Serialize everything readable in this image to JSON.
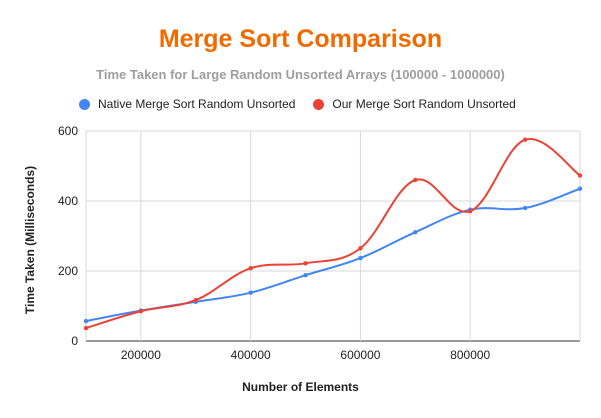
{
  "chart_data": {
    "type": "line",
    "title": "Merge Sort Comparison",
    "subtitle": "Time Taken for Large Random Unsorted Arrays (100000 - 1000000)",
    "xlabel": "Number of Elements",
    "ylabel": "Time Taken (Milliseconds)",
    "xlim": [
      100000,
      1000000
    ],
    "ylim": [
      0,
      600
    ],
    "x_ticks": [
      200000,
      400000,
      600000,
      800000
    ],
    "y_ticks": [
      0,
      200,
      400,
      600
    ],
    "grid": true,
    "legend_position": "top-left",
    "x": [
      100000,
      200000,
      300000,
      400000,
      500000,
      600000,
      700000,
      800000,
      900000,
      1000000
    ],
    "series": [
      {
        "name": "Native Merge Sort Random Unsorted",
        "color": "#4285f4",
        "values": [
          57,
          87,
          112,
          138,
          188,
          237,
          311,
          375,
          380,
          435
        ]
      },
      {
        "name": "Our Merge Sort Random Unsorted",
        "color": "#ea4335",
        "values": [
          37,
          85,
          117,
          208,
          222,
          265,
          460,
          371,
          575,
          473
        ]
      }
    ]
  }
}
